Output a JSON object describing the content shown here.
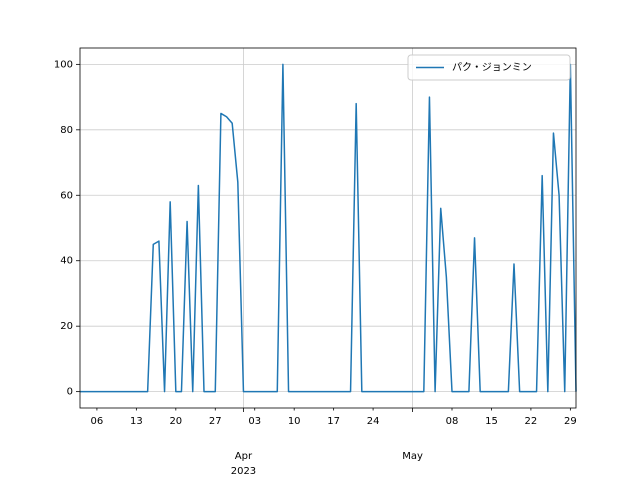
{
  "chart_data": {
    "type": "line",
    "x": [
      "2023-03-03",
      "2023-03-04",
      "2023-03-05",
      "2023-03-06",
      "2023-03-07",
      "2023-03-08",
      "2023-03-09",
      "2023-03-10",
      "2023-03-11",
      "2023-03-12",
      "2023-03-13",
      "2023-03-14",
      "2023-03-15",
      "2023-03-16",
      "2023-03-17",
      "2023-03-18",
      "2023-03-19",
      "2023-03-20",
      "2023-03-21",
      "2023-03-22",
      "2023-03-23",
      "2023-03-24",
      "2023-03-25",
      "2023-03-26",
      "2023-03-27",
      "2023-03-28",
      "2023-03-29",
      "2023-03-30",
      "2023-03-31",
      "2023-04-01",
      "2023-04-02",
      "2023-04-03",
      "2023-04-04",
      "2023-04-05",
      "2023-04-06",
      "2023-04-07",
      "2023-04-08",
      "2023-04-09",
      "2023-04-10",
      "2023-04-11",
      "2023-04-12",
      "2023-04-13",
      "2023-04-14",
      "2023-04-15",
      "2023-04-16",
      "2023-04-17",
      "2023-04-18",
      "2023-04-19",
      "2023-04-20",
      "2023-04-21",
      "2023-04-22",
      "2023-04-23",
      "2023-04-24",
      "2023-04-25",
      "2023-04-26",
      "2023-04-27",
      "2023-04-28",
      "2023-04-29",
      "2023-04-30",
      "2023-05-01",
      "2023-05-02",
      "2023-05-03",
      "2023-05-04",
      "2023-05-05",
      "2023-05-06",
      "2023-05-07",
      "2023-05-08",
      "2023-05-09",
      "2023-05-10",
      "2023-05-11",
      "2023-05-12",
      "2023-05-13",
      "2023-05-14",
      "2023-05-15",
      "2023-05-16",
      "2023-05-17",
      "2023-05-18",
      "2023-05-19",
      "2023-05-20",
      "2023-05-21",
      "2023-05-22",
      "2023-05-23",
      "2023-05-24",
      "2023-05-25",
      "2023-05-26",
      "2023-05-27",
      "2023-05-28",
      "2023-05-29",
      "2023-05-30"
    ],
    "series": [
      {
        "name": "パク・ジョンミン",
        "color": "#1f77b4",
        "values": [
          0,
          0,
          0,
          0,
          0,
          0,
          0,
          0,
          0,
          0,
          0,
          0,
          0,
          45,
          46,
          0,
          58,
          0,
          0,
          52,
          0,
          63,
          0,
          0,
          0,
          85,
          84,
          82,
          64,
          0,
          0,
          0,
          0,
          0,
          0,
          0,
          100,
          0,
          0,
          0,
          0,
          0,
          0,
          0,
          0,
          0,
          0,
          0,
          0,
          88,
          0,
          0,
          0,
          0,
          0,
          0,
          0,
          0,
          0,
          0,
          0,
          0,
          90,
          0,
          56,
          35,
          0,
          0,
          0,
          0,
          47,
          0,
          0,
          0,
          0,
          0,
          0,
          39,
          0,
          0,
          0,
          0,
          66,
          0,
          79,
          60,
          0,
          100,
          0
        ]
      }
    ],
    "xlim": [
      "2023-03-03",
      "2023-05-30"
    ],
    "xticks": [
      {
        "value": "2023-03-06",
        "label": "06"
      },
      {
        "value": "2023-03-13",
        "label": "13"
      },
      {
        "value": "2023-03-20",
        "label": "20"
      },
      {
        "value": "2023-03-27",
        "label": "27"
      },
      {
        "value": "2023-04-01",
        "label": "Apr"
      },
      {
        "value": "2023-04-03",
        "label": "03"
      },
      {
        "value": "2023-04-10",
        "label": "10"
      },
      {
        "value": "2023-04-17",
        "label": "17"
      },
      {
        "value": "2023-04-24",
        "label": "24"
      },
      {
        "value": "2023-05-01",
        "label": "May"
      },
      {
        "value": "2023-05-08",
        "label": "08"
      },
      {
        "value": "2023-05-15",
        "label": "15"
      },
      {
        "value": "2023-05-22",
        "label": "22"
      },
      {
        "value": "2023-05-29",
        "label": "29"
      }
    ],
    "x_year_label": "2023",
    "ylim": [
      -5,
      105
    ],
    "yticks": [
      0,
      20,
      40,
      60,
      80,
      100
    ],
    "grid": true,
    "legend": "upper right"
  }
}
